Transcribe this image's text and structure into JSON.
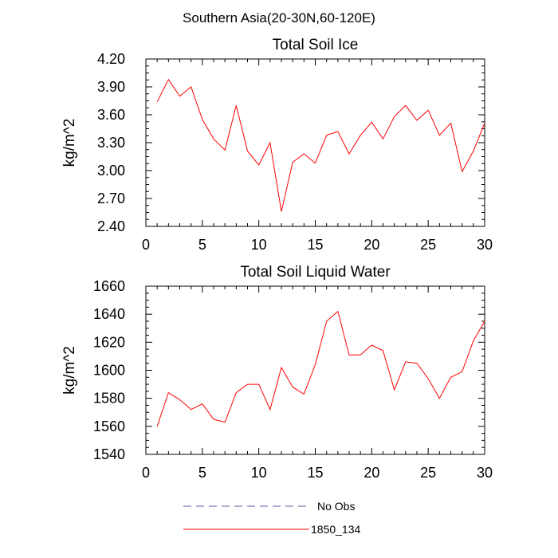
{
  "page_title": "Southern Asia(20-30N,60-120E)",
  "chart_data": [
    {
      "type": "line",
      "title": "Total Soil Ice",
      "xlabel": "",
      "ylabel": "kg/m^2",
      "xlim": [
        0,
        30
      ],
      "ylim": [
        2.4,
        4.2
      ],
      "x_ticks": [
        0,
        5,
        10,
        15,
        20,
        25,
        30
      ],
      "y_ticks": [
        "2.40",
        "2.70",
        "3.00",
        "3.30",
        "3.60",
        "3.90",
        "4.20"
      ],
      "grid": false,
      "series": [
        {
          "name": "1850_134",
          "color": "#ff0000",
          "x": [
            1,
            2,
            3,
            4,
            5,
            6,
            7,
            8,
            9,
            10,
            11,
            12,
            13,
            14,
            15,
            16,
            17,
            18,
            19,
            20,
            21,
            22,
            23,
            24,
            25,
            26,
            27,
            28,
            29,
            30
          ],
          "values": [
            3.74,
            3.98,
            3.8,
            3.9,
            3.55,
            3.34,
            3.22,
            3.7,
            3.21,
            3.06,
            3.3,
            2.56,
            3.09,
            3.18,
            3.08,
            3.38,
            3.42,
            3.18,
            3.38,
            3.52,
            3.34,
            3.58,
            3.7,
            3.54,
            3.65,
            3.38,
            3.51,
            2.99,
            3.21,
            3.51
          ]
        }
      ]
    },
    {
      "type": "line",
      "title": "Total Soil Liquid Water",
      "xlabel": "",
      "ylabel": "kg/m^2",
      "xlim": [
        0,
        30
      ],
      "ylim": [
        1540,
        1660
      ],
      "x_ticks": [
        0,
        5,
        10,
        15,
        20,
        25,
        30
      ],
      "y_ticks": [
        "1540",
        "1560",
        "1580",
        "1600",
        "1620",
        "1640",
        "1660"
      ],
      "grid": false,
      "series": [
        {
          "name": "1850_134",
          "color": "#ff0000",
          "x": [
            1,
            2,
            3,
            4,
            5,
            6,
            7,
            8,
            9,
            10,
            11,
            12,
            13,
            14,
            15,
            16,
            17,
            18,
            19,
            20,
            21,
            22,
            23,
            24,
            25,
            26,
            27,
            28,
            29,
            30
          ],
          "values": [
            1560,
            1584,
            1579,
            1572,
            1576,
            1565,
            1563,
            1584,
            1590,
            1590,
            1572,
            1602,
            1588,
            1583,
            1604,
            1635,
            1642,
            1611,
            1611,
            1618,
            1614,
            1586,
            1606,
            1605,
            1594,
            1580,
            1595,
            1599,
            1621,
            1635
          ]
        }
      ]
    }
  ],
  "legend": {
    "placement": "bottom-center",
    "items": [
      {
        "label": "No Obs",
        "color": "#5b5ba8",
        "style": "dashed"
      },
      {
        "label": "1850_134",
        "color": "#ff0000",
        "style": "solid"
      }
    ]
  }
}
